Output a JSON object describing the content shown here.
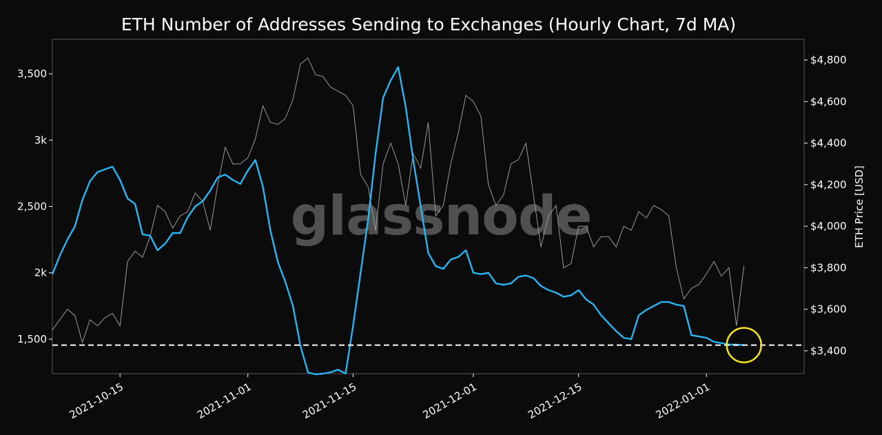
{
  "chart_data": {
    "type": "line",
    "title": "ETH Number of Addresses Sending to Exchanges (Hourly Chart, 7d MA)",
    "watermark": "glassnode",
    "y_left": {
      "ticks": [
        1500,
        2000,
        2500,
        3000,
        3500
      ],
      "tick_labels": [
        "1,500",
        "2k",
        "2,500",
        "3k",
        "3,500"
      ],
      "range": [
        1240,
        3760
      ]
    },
    "y_right": {
      "label": "ETH Price [USD]",
      "ticks": [
        3400,
        3600,
        3800,
        4000,
        4200,
        4400,
        4600,
        4800
      ],
      "tick_labels": [
        "$3,400",
        "$3,600",
        "$3,800",
        "$4,000",
        "$4,200",
        "$4,400",
        "$4,600",
        "$4,800"
      ],
      "range": [
        3290,
        4900
      ]
    },
    "x_axis": {
      "ticks": [
        "2021-10-15",
        "2021-11-01",
        "2021-11-15",
        "2021-12-01",
        "2021-12-15",
        "2022-01-01"
      ],
      "range": [
        "2021-10-06",
        "2022-01-14"
      ]
    },
    "reference_line": {
      "value": 1455,
      "style": "dashed",
      "color": "#ffffff"
    },
    "highlight_circle": {
      "date": "2022-01-06",
      "value": 1455,
      "color": "#f5e61f"
    },
    "series": [
      {
        "axis": "left",
        "color": "#29b6f6",
        "points": [
          [
            "2021-10-06",
            1990
          ],
          [
            "2021-10-07",
            2130
          ],
          [
            "2021-10-08",
            2250
          ],
          [
            "2021-10-09",
            2350
          ],
          [
            "2021-10-10",
            2550
          ],
          [
            "2021-10-11",
            2690
          ],
          [
            "2021-10-12",
            2760
          ],
          [
            "2021-10-13",
            2780
          ],
          [
            "2021-10-14",
            2800
          ],
          [
            "2021-10-15",
            2700
          ],
          [
            "2021-10-16",
            2560
          ],
          [
            "2021-10-17",
            2520
          ],
          [
            "2021-10-18",
            2290
          ],
          [
            "2021-10-19",
            2280
          ],
          [
            "2021-10-20",
            2170
          ],
          [
            "2021-10-21",
            2220
          ],
          [
            "2021-10-22",
            2300
          ],
          [
            "2021-10-23",
            2300
          ],
          [
            "2021-10-24",
            2420
          ],
          [
            "2021-10-25",
            2500
          ],
          [
            "2021-10-26",
            2540
          ],
          [
            "2021-10-27",
            2620
          ],
          [
            "2021-10-28",
            2720
          ],
          [
            "2021-10-29",
            2740
          ],
          [
            "2021-10-30",
            2700
          ],
          [
            "2021-10-31",
            2670
          ],
          [
            "2021-11-01",
            2770
          ],
          [
            "2021-11-02",
            2850
          ],
          [
            "2021-11-03",
            2650
          ],
          [
            "2021-11-04",
            2320
          ],
          [
            "2021-11-05",
            2080
          ],
          [
            "2021-11-06",
            1930
          ],
          [
            "2021-11-07",
            1750
          ],
          [
            "2021-11-08",
            1450
          ],
          [
            "2021-11-09",
            1250
          ],
          [
            "2021-11-10",
            1235
          ],
          [
            "2021-11-11",
            1240
          ],
          [
            "2021-11-12",
            1250
          ],
          [
            "2021-11-13",
            1270
          ],
          [
            "2021-11-14",
            1240
          ],
          [
            "2021-11-15",
            1600
          ],
          [
            "2021-11-16",
            2000
          ],
          [
            "2021-11-17",
            2400
          ],
          [
            "2021-11-18",
            2900
          ],
          [
            "2021-11-19",
            3320
          ],
          [
            "2021-11-20",
            3450
          ],
          [
            "2021-11-21",
            3550
          ],
          [
            "2021-11-22",
            3250
          ],
          [
            "2021-11-23",
            2850
          ],
          [
            "2021-11-24",
            2500
          ],
          [
            "2021-11-25",
            2150
          ],
          [
            "2021-11-26",
            2050
          ],
          [
            "2021-11-27",
            2030
          ],
          [
            "2021-11-28",
            2100
          ],
          [
            "2021-11-29",
            2120
          ],
          [
            "2021-11-30",
            2170
          ],
          [
            "2021-12-01",
            2000
          ],
          [
            "2021-12-02",
            1990
          ],
          [
            "2021-12-03",
            2000
          ],
          [
            "2021-12-04",
            1920
          ],
          [
            "2021-12-05",
            1910
          ],
          [
            "2021-12-06",
            1920
          ],
          [
            "2021-12-07",
            1970
          ],
          [
            "2021-12-08",
            1980
          ],
          [
            "2021-12-09",
            1960
          ],
          [
            "2021-12-10",
            1900
          ],
          [
            "2021-12-11",
            1870
          ],
          [
            "2021-12-12",
            1850
          ],
          [
            "2021-12-13",
            1820
          ],
          [
            "2021-12-14",
            1830
          ],
          [
            "2021-12-15",
            1870
          ],
          [
            "2021-12-16",
            1800
          ],
          [
            "2021-12-17",
            1760
          ],
          [
            "2021-12-18",
            1680
          ],
          [
            "2021-12-19",
            1620
          ],
          [
            "2021-12-20",
            1560
          ],
          [
            "2021-12-21",
            1510
          ],
          [
            "2021-12-22",
            1500
          ],
          [
            "2021-12-23",
            1680
          ],
          [
            "2021-12-24",
            1720
          ],
          [
            "2021-12-25",
            1750
          ],
          [
            "2021-12-26",
            1780
          ],
          [
            "2021-12-27",
            1780
          ],
          [
            "2021-12-28",
            1760
          ],
          [
            "2021-12-29",
            1750
          ],
          [
            "2021-12-30",
            1530
          ],
          [
            "2021-12-31",
            1520
          ],
          [
            "2022-01-01",
            1510
          ],
          [
            "2022-01-02",
            1480
          ],
          [
            "2022-01-03",
            1470
          ],
          [
            "2022-01-04",
            1460
          ],
          [
            "2022-01-05",
            1458
          ],
          [
            "2022-01-06",
            1455
          ]
        ]
      },
      {
        "axis": "right",
        "color": "#9a9a9a",
        "points": [
          [
            "2021-10-06",
            3500
          ],
          [
            "2021-10-07",
            3550
          ],
          [
            "2021-10-08",
            3600
          ],
          [
            "2021-10-09",
            3570
          ],
          [
            "2021-10-10",
            3440
          ],
          [
            "2021-10-11",
            3550
          ],
          [
            "2021-10-12",
            3520
          ],
          [
            "2021-10-13",
            3560
          ],
          [
            "2021-10-14",
            3580
          ],
          [
            "2021-10-15",
            3520
          ],
          [
            "2021-10-16",
            3830
          ],
          [
            "2021-10-17",
            3880
          ],
          [
            "2021-10-18",
            3850
          ],
          [
            "2021-10-19",
            3950
          ],
          [
            "2021-10-20",
            4100
          ],
          [
            "2021-10-21",
            4070
          ],
          [
            "2021-10-22",
            3990
          ],
          [
            "2021-10-23",
            4050
          ],
          [
            "2021-10-24",
            4070
          ],
          [
            "2021-10-25",
            4160
          ],
          [
            "2021-10-26",
            4120
          ],
          [
            "2021-10-27",
            3980
          ],
          [
            "2021-10-28",
            4200
          ],
          [
            "2021-10-29",
            4380
          ],
          [
            "2021-10-30",
            4300
          ],
          [
            "2021-10-31",
            4300
          ],
          [
            "2021-11-01",
            4330
          ],
          [
            "2021-11-02",
            4420
          ],
          [
            "2021-11-03",
            4580
          ],
          [
            "2021-11-04",
            4500
          ],
          [
            "2021-11-05",
            4490
          ],
          [
            "2021-11-06",
            4520
          ],
          [
            "2021-11-07",
            4610
          ],
          [
            "2021-11-08",
            4780
          ],
          [
            "2021-11-09",
            4810
          ],
          [
            "2021-11-10",
            4730
          ],
          [
            "2021-11-11",
            4720
          ],
          [
            "2021-11-12",
            4670
          ],
          [
            "2021-11-13",
            4650
          ],
          [
            "2021-11-14",
            4630
          ],
          [
            "2021-11-15",
            4580
          ],
          [
            "2021-11-16",
            4250
          ],
          [
            "2021-11-17",
            4190
          ],
          [
            "2021-11-18",
            3980
          ],
          [
            "2021-11-19",
            4300
          ],
          [
            "2021-11-20",
            4400
          ],
          [
            "2021-11-21",
            4300
          ],
          [
            "2021-11-22",
            4100
          ],
          [
            "2021-11-23",
            4350
          ],
          [
            "2021-11-24",
            4280
          ],
          [
            "2021-11-25",
            4500
          ],
          [
            "2021-11-26",
            4050
          ],
          [
            "2021-11-27",
            4100
          ],
          [
            "2021-11-28",
            4300
          ],
          [
            "2021-11-29",
            4450
          ],
          [
            "2021-11-30",
            4630
          ],
          [
            "2021-12-01",
            4600
          ],
          [
            "2021-12-02",
            4530
          ],
          [
            "2021-12-03",
            4200
          ],
          [
            "2021-12-04",
            4100
          ],
          [
            "2021-12-05",
            4150
          ],
          [
            "2021-12-06",
            4300
          ],
          [
            "2021-12-07",
            4320
          ],
          [
            "2021-12-08",
            4400
          ],
          [
            "2021-12-09",
            4150
          ],
          [
            "2021-12-10",
            3900
          ],
          [
            "2021-12-11",
            4050
          ],
          [
            "2021-12-12",
            4100
          ],
          [
            "2021-12-13",
            3800
          ],
          [
            "2021-12-14",
            3820
          ],
          [
            "2021-12-15",
            4000
          ],
          [
            "2021-12-16",
            4000
          ],
          [
            "2021-12-17",
            3900
          ],
          [
            "2021-12-18",
            3950
          ],
          [
            "2021-12-19",
            3950
          ],
          [
            "2021-12-20",
            3900
          ],
          [
            "2021-12-21",
            4000
          ],
          [
            "2021-12-22",
            3980
          ],
          [
            "2021-12-23",
            4070
          ],
          [
            "2021-12-24",
            4040
          ],
          [
            "2021-12-25",
            4100
          ],
          [
            "2021-12-26",
            4080
          ],
          [
            "2021-12-27",
            4050
          ],
          [
            "2021-12-28",
            3800
          ],
          [
            "2021-12-29",
            3650
          ],
          [
            "2021-12-30",
            3700
          ],
          [
            "2021-12-31",
            3720
          ],
          [
            "2022-01-01",
            3770
          ],
          [
            "2022-01-02",
            3830
          ],
          [
            "2022-01-03",
            3760
          ],
          [
            "2022-01-04",
            3800
          ],
          [
            "2022-01-05",
            3520
          ],
          [
            "2022-01-06",
            3810
          ]
        ]
      }
    ]
  }
}
